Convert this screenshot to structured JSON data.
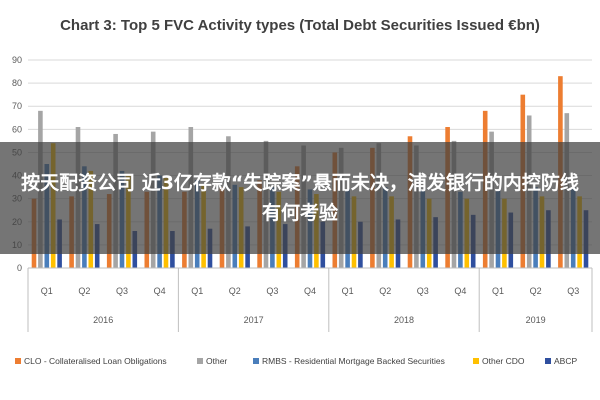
{
  "overlay": {
    "headline": "按天配资公司 近3亿存款“失踪案”悬而未决，浦发银行的内控防线有何考验"
  },
  "colors": {
    "CLO": "#ed7d31",
    "Other": "#a5a5a5",
    "RMBS": "#4a7ebb",
    "OtherCDO": "#ffc000",
    "ABCP": "#2f4f9f",
    "grid": "#d9d9d9",
    "overlay": "#404040"
  },
  "chart_data": {
    "type": "bar",
    "title": "Chart 3: Top 5 FVC Activity types (Total Debt Securities Issued €bn)",
    "xlabel": "",
    "ylabel": "",
    "ylim": [
      0,
      90
    ],
    "yticks": [
      0,
      10,
      20,
      30,
      40,
      50,
      60,
      70,
      80,
      90
    ],
    "grid": true,
    "legend_position": "bottom",
    "categories": [
      "Q1",
      "Q2",
      "Q3",
      "Q4",
      "Q1",
      "Q2",
      "Q3",
      "Q4",
      "Q1",
      "Q2",
      "Q3",
      "Q4",
      "Q1",
      "Q2",
      "Q3"
    ],
    "groups": [
      {
        "label": "2016",
        "count": 4
      },
      {
        "label": "2017",
        "count": 4
      },
      {
        "label": "2018",
        "count": 4
      },
      {
        "label": "2019",
        "count": 3
      }
    ],
    "series": [
      {
        "name": "CLO - Collateralised Loan Obligations",
        "color": "#ed7d31",
        "values": [
          30,
          31,
          32,
          33,
          33,
          35,
          38,
          44,
          50,
          52,
          57,
          61,
          68,
          75,
          83
        ]
      },
      {
        "name": "Other",
        "color": "#a5a5a5",
        "values": [
          68,
          61,
          58,
          59,
          61,
          57,
          55,
          53,
          52,
          54,
          53,
          55,
          59,
          66,
          67
        ]
      },
      {
        "name": "RMBS - Residential Mortgage Backed Securities",
        "color": "#4a7ebb",
        "values": [
          45,
          44,
          42,
          40,
          38,
          36,
          35,
          34,
          34,
          35,
          34,
          33,
          34,
          35,
          35
        ]
      },
      {
        "name": "Other CDO",
        "color": "#ffc000",
        "values": [
          54,
          42,
          40,
          39,
          36,
          35,
          33,
          32,
          31,
          31,
          30,
          30,
          30,
          31,
          31
        ]
      },
      {
        "name": "ABCP",
        "color": "#2f4f9f",
        "values": [
          21,
          19,
          16,
          16,
          17,
          18,
          19,
          20,
          20,
          21,
          22,
          23,
          24,
          25,
          25
        ]
      }
    ]
  }
}
